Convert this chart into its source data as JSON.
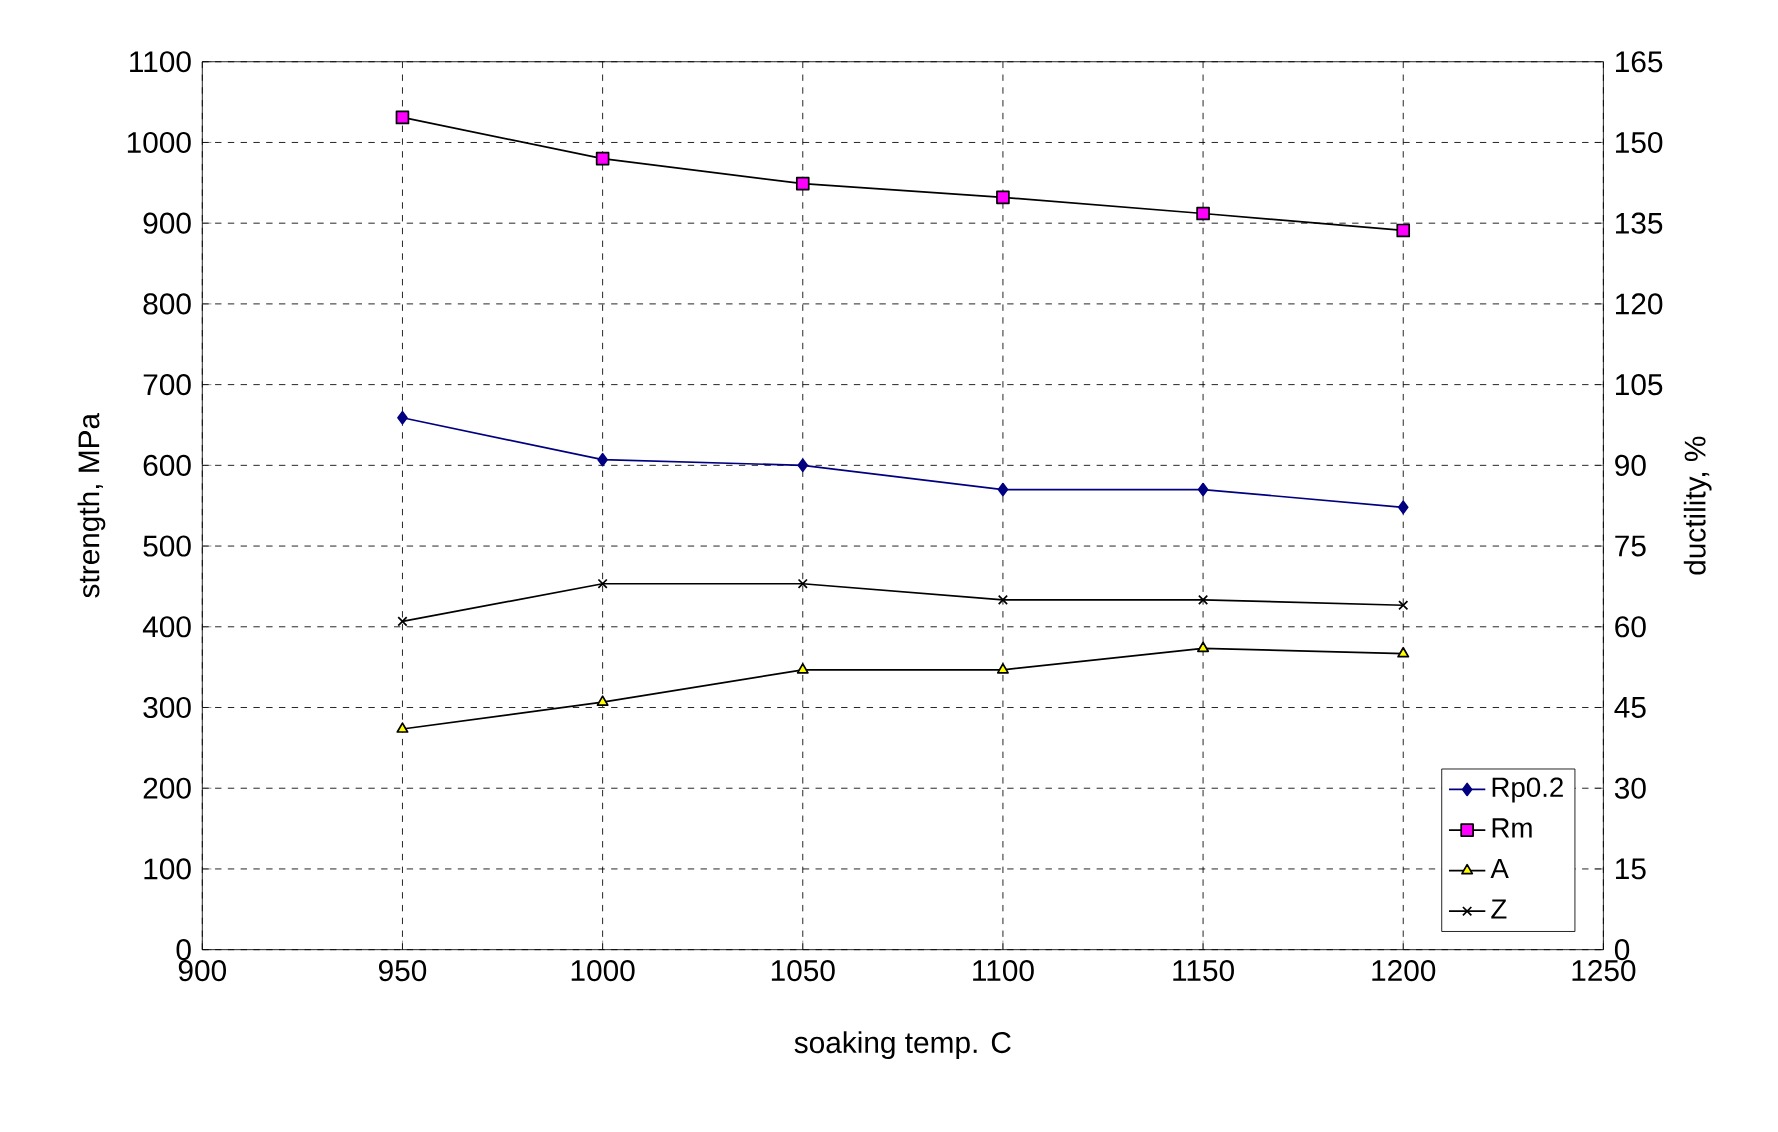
{
  "chart_data": {
    "type": "line",
    "xlabel": "soaking temp. C",
    "ylabel": "strength, MPa",
    "y2label": "ductility, %",
    "x": [
      950,
      1000,
      1050,
      1100,
      1150,
      1200
    ],
    "series": [
      {
        "name": "Rp0.2",
        "color": "#000080",
        "marker": "diamond",
        "values": [
          659,
          607,
          600,
          570,
          570,
          548
        ]
      },
      {
        "name": "Rm",
        "color": "#ff00ff",
        "marker": "square",
        "values": [
          1031,
          980,
          949,
          932,
          912,
          891
        ]
      },
      {
        "name": "A",
        "color": "#ffff00",
        "marker": "triangle",
        "axis": "y2",
        "values": [
          41,
          46,
          52,
          52,
          56,
          55
        ]
      },
      {
        "name": "Z",
        "color": "#000000",
        "marker": "cross",
        "axis": "y2",
        "values": [
          61,
          68,
          68,
          65,
          65,
          64
        ]
      }
    ],
    "xlim": [
      900,
      1250
    ],
    "xticks": [
      900,
      950,
      1000,
      1050,
      1100,
      1150,
      1200,
      1250
    ],
    "ylim": [
      0,
      1100
    ],
    "yticks": [
      0,
      100,
      200,
      300,
      400,
      500,
      600,
      700,
      800,
      900,
      1000,
      1100
    ],
    "y2lim": [
      0,
      165
    ],
    "y2ticks": [
      0,
      15,
      30,
      45,
      60,
      75,
      90,
      105,
      120,
      135,
      150,
      165
    ],
    "grid": true,
    "legend": "bottom right",
    "line_style": "solid"
  }
}
